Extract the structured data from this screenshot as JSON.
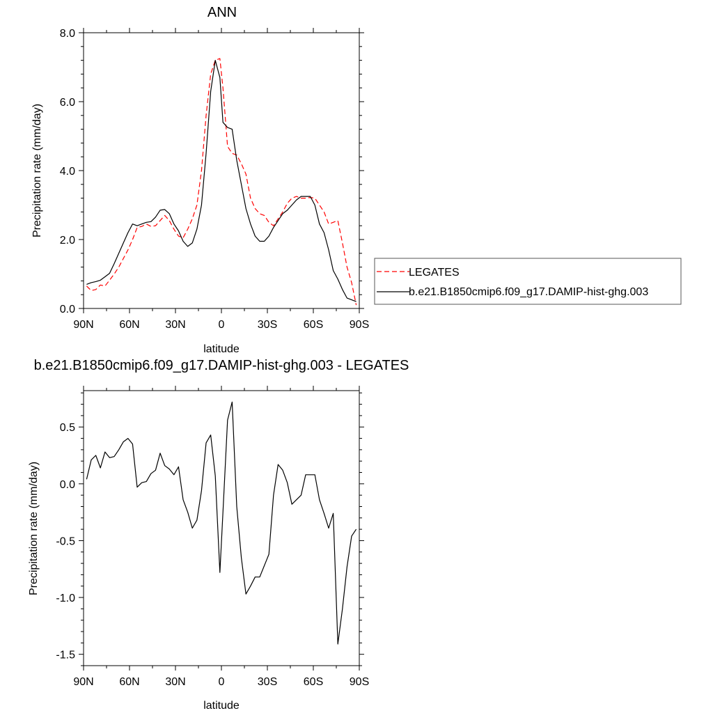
{
  "chart_data": [
    {
      "type": "line",
      "title": "ANN",
      "xlabel": "latitude",
      "ylabel": "Precipitation rate (mm/day)",
      "xlim": [
        90,
        -90
      ],
      "ylim": [
        0,
        8
      ],
      "xticks": [
        {
          "value": 90,
          "label": "90N"
        },
        {
          "value": 60,
          "label": "60N"
        },
        {
          "value": 30,
          "label": "30N"
        },
        {
          "value": 0,
          "label": "0"
        },
        {
          "value": -30,
          "label": "30S"
        },
        {
          "value": -60,
          "label": "60S"
        },
        {
          "value": -90,
          "label": "90S"
        }
      ],
      "yticks": [
        {
          "value": 0,
          "label": "0.0"
        },
        {
          "value": 2,
          "label": "2.0"
        },
        {
          "value": 4,
          "label": "4.0"
        },
        {
          "value": 6,
          "label": "6.0"
        },
        {
          "value": 8,
          "label": "8.0"
        }
      ],
      "grid": false,
      "legend_position": "right",
      "series": [
        {
          "name": "LEGATES",
          "color": "#ff0000",
          "dash": "dashed",
          "x": [
            88,
            85,
            82,
            79,
            76,
            73,
            70,
            67,
            64,
            61,
            58,
            55,
            52,
            49,
            46,
            43,
            40,
            37,
            34,
            31,
            28,
            25,
            22,
            19,
            16,
            13,
            10,
            7,
            4,
            1,
            -1,
            -4,
            -7,
            -10,
            -13,
            -16,
            -19,
            -22,
            -25,
            -28,
            -31,
            -34,
            -37,
            -40,
            -43,
            -46,
            -49,
            -52,
            -55,
            -58,
            -61,
            -64,
            -67,
            -70,
            -73,
            -76,
            -79,
            -82,
            -85,
            -88
          ],
          "y": [
            0.65,
            0.52,
            0.55,
            0.68,
            0.65,
            0.82,
            1.0,
            1.2,
            1.45,
            1.7,
            2.0,
            2.35,
            2.38,
            2.45,
            2.38,
            2.4,
            2.55,
            2.7,
            2.55,
            2.3,
            2.1,
            2.05,
            2.3,
            2.6,
            3.0,
            4.0,
            5.6,
            6.8,
            7.2,
            7.25,
            6.4,
            4.7,
            4.5,
            4.45,
            4.2,
            3.9,
            3.2,
            2.9,
            2.75,
            2.7,
            2.5,
            2.4,
            2.6,
            2.8,
            3.05,
            3.2,
            3.25,
            3.2,
            3.2,
            3.22,
            3.2,
            3.0,
            2.8,
            2.45,
            2.5,
            2.55,
            1.9,
            1.2,
            0.75,
            0.1
          ]
        },
        {
          "name": "b.e21.B1850cmip6.f09_g17.DAMIP-hist-ghg.003",
          "color": "#000000",
          "dash": "solid",
          "x": [
            88,
            85,
            82,
            79,
            76,
            73,
            70,
            67,
            64,
            61,
            58,
            55,
            52,
            49,
            46,
            43,
            40,
            37,
            34,
            31,
            28,
            25,
            22,
            19,
            16,
            13,
            10,
            7,
            4,
            1,
            -1,
            -4,
            -7,
            -10,
            -13,
            -16,
            -19,
            -22,
            -25,
            -28,
            -31,
            -34,
            -37,
            -40,
            -43,
            -46,
            -49,
            -52,
            -55,
            -58,
            -61,
            -64,
            -67,
            -70,
            -73,
            -76,
            -79,
            -82,
            -85,
            -88
          ],
          "y": [
            0.7,
            0.75,
            0.78,
            0.82,
            0.92,
            1.02,
            1.3,
            1.6,
            1.9,
            2.2,
            2.45,
            2.4,
            2.45,
            2.5,
            2.52,
            2.65,
            2.85,
            2.87,
            2.75,
            2.45,
            2.25,
            1.95,
            1.8,
            1.9,
            2.3,
            3.0,
            4.5,
            6.3,
            7.2,
            6.7,
            5.4,
            5.25,
            5.2,
            4.3,
            3.6,
            2.9,
            2.45,
            2.1,
            1.95,
            1.95,
            2.1,
            2.35,
            2.55,
            2.75,
            2.85,
            3.0,
            3.15,
            3.25,
            3.25,
            3.25,
            3.0,
            2.45,
            2.2,
            1.7,
            1.1,
            0.85,
            0.55,
            0.3,
            0.25,
            0.2
          ]
        }
      ]
    },
    {
      "type": "line",
      "title": "b.e21.B1850cmip6.f09_g17.DAMIP-hist-ghg.003 - LEGATES",
      "xlabel": "latitude",
      "ylabel": "Precipitation rate (mm/day)",
      "xlim": [
        90,
        -90
      ],
      "ylim": [
        -1.6,
        0.82
      ],
      "xticks": [
        {
          "value": 90,
          "label": "90N"
        },
        {
          "value": 60,
          "label": "60N"
        },
        {
          "value": 30,
          "label": "30N"
        },
        {
          "value": 0,
          "label": "0"
        },
        {
          "value": -30,
          "label": "30S"
        },
        {
          "value": -60,
          "label": "60S"
        },
        {
          "value": -90,
          "label": "90S"
        }
      ],
      "yticks": [
        {
          "value": 0.5,
          "label": "0.5"
        },
        {
          "value": 0,
          "label": "0.0"
        },
        {
          "value": -0.5,
          "label": "-0.5"
        },
        {
          "value": -1.0,
          "label": "-1.0"
        },
        {
          "value": -1.5,
          "label": "-1.5"
        }
      ],
      "grid": false,
      "series": [
        {
          "color": "#000000",
          "dash": "solid",
          "x": [
            88,
            85,
            82,
            79,
            76,
            73,
            70,
            67,
            64,
            61,
            58,
            55,
            52,
            49,
            46,
            43,
            40,
            37,
            34,
            31,
            28,
            25,
            22,
            19,
            16,
            13,
            10,
            7,
            4,
            1,
            -1,
            -4,
            -7,
            -10,
            -13,
            -16,
            -19,
            -22,
            -25,
            -28,
            -31,
            -34,
            -37,
            -40,
            -43,
            -46,
            -49,
            -52,
            -55,
            -58,
            -61,
            -64,
            -67,
            -70,
            -73,
            -76,
            -79,
            -82,
            -85,
            -88
          ],
          "y": [
            0.04,
            0.21,
            0.25,
            0.14,
            0.28,
            0.23,
            0.24,
            0.3,
            0.37,
            0.4,
            0.35,
            -0.03,
            0.01,
            0.02,
            0.09,
            0.12,
            0.27,
            0.16,
            0.13,
            0.08,
            0.15,
            -0.14,
            -0.25,
            -0.39,
            -0.32,
            -0.06,
            0.36,
            0.43,
            0.07,
            -0.78,
            -0.25,
            0.56,
            0.72,
            -0.2,
            -0.65,
            -0.97,
            -0.9,
            -0.82,
            -0.82,
            -0.72,
            -0.62,
            -0.1,
            0.17,
            0.12,
            0.01,
            -0.18,
            -0.14,
            -0.1,
            0.08,
            0.08,
            0.08,
            -0.14,
            -0.26,
            -0.39,
            -0.26,
            -1.41,
            -1.1,
            -0.73,
            -0.46,
            -0.4
          ]
        }
      ]
    }
  ]
}
